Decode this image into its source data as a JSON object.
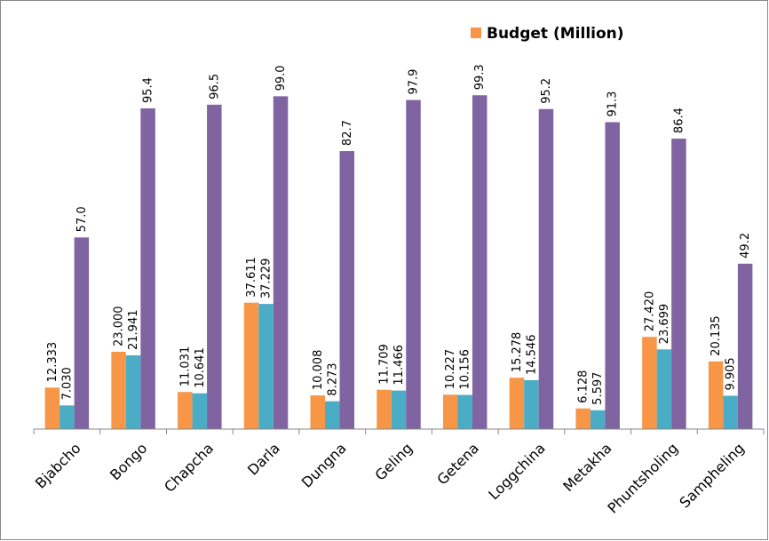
{
  "chart_data": {
    "type": "bar",
    "categories": [
      "Bjabcho",
      "Bongo",
      "Chapcha",
      "Darla",
      "Dungna",
      "Geling",
      "Getena",
      "Loggchina",
      "Metakha",
      "Phuntsholing",
      "Sampheling"
    ],
    "series": [
      {
        "name": "Budget (Million)",
        "color": "#f79646",
        "values": [
          12.333,
          23.0,
          11.031,
          37.611,
          10.008,
          11.709,
          10.227,
          15.278,
          6.128,
          27.42,
          20.135
        ],
        "value_labels": [
          "12.333",
          "23.000",
          "11.031",
          "37.611",
          "10.008",
          "11.709",
          "10.227",
          "15.278",
          "6.128",
          "27.420",
          "20.135"
        ]
      },
      {
        "color": "#4bacc6",
        "values": [
          7.03,
          21.941,
          10.641,
          37.229,
          8.273,
          11.466,
          10.156,
          14.546,
          5.597,
          23.699,
          9.905
        ],
        "value_labels": [
          "7.030",
          "21.941",
          "10.641",
          "37.229",
          "8.273",
          "11.466",
          "10.156",
          "14.546",
          "5.597",
          "23.699",
          "9.905"
        ]
      },
      {
        "color": "#8064a2",
        "values": [
          57.0,
          95.4,
          96.5,
          99.0,
          82.7,
          97.9,
          99.3,
          95.2,
          91.3,
          86.4,
          49.2
        ],
        "value_labels": [
          "57.0",
          "95.4",
          "96.5",
          "99.0",
          "82.7",
          "97.9",
          "99.3",
          "95.2",
          "91.3",
          "86.4",
          "49.2"
        ]
      }
    ],
    "ylim": [
      0,
      100
    ],
    "legend": "top-right"
  }
}
